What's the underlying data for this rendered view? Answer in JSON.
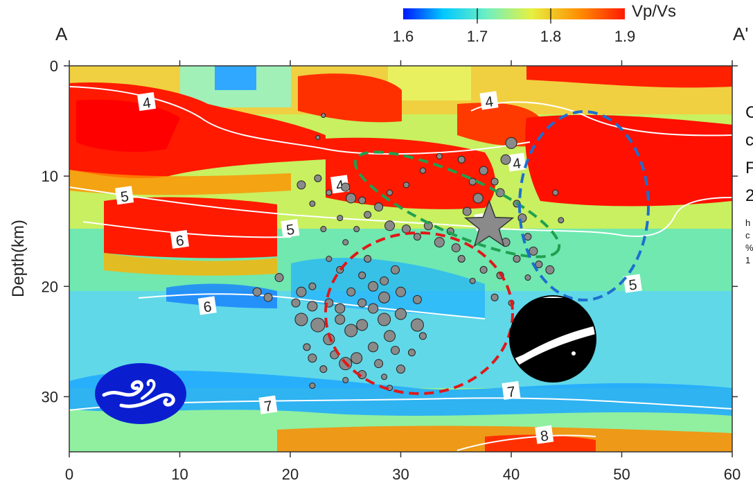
{
  "header": {
    "left_label": "A",
    "right_label": "A'"
  },
  "colorbar": {
    "label": "Vp/Vs",
    "min": 1.6,
    "max": 1.9,
    "ticks": [
      "1.6",
      "1.7",
      "1.8",
      "1.9"
    ],
    "colors": [
      "#0018ff",
      "#00c8ff",
      "#70f0c0",
      "#e6f040",
      "#ff8c00",
      "#ff1a00"
    ]
  },
  "side_text": {
    "lines": [
      "C",
      "c",
      "F",
      "2"
    ],
    "small_lines": [
      "h",
      "c",
      "%",
      "1"
    ]
  },
  "chart_data": {
    "type": "heatmap",
    "title": "",
    "xlabel": "",
    "ylabel": "Depth(km)",
    "xlim": [
      0,
      60
    ],
    "ylim": [
      35,
      0
    ],
    "x_ticks": [
      "0",
      "10",
      "20",
      "30",
      "40",
      "50",
      "60"
    ],
    "y_ticks": [
      "0",
      "10",
      "20",
      "30"
    ],
    "grid": false,
    "contour_labels": [
      {
        "text": "4",
        "x": 7,
        "y": 3.3
      },
      {
        "text": "4",
        "x": 24.5,
        "y": 10.8
      },
      {
        "text": "4",
        "x": 38,
        "y": 3.2
      },
      {
        "text": "4",
        "x": 40.5,
        "y": 8.8
      },
      {
        "text": "5",
        "x": 5,
        "y": 11.8
      },
      {
        "text": "5",
        "x": 20,
        "y": 14.8
      },
      {
        "text": "5",
        "x": 37.5,
        "y": 14.2
      },
      {
        "text": "5",
        "x": 51,
        "y": 19.8
      },
      {
        "text": "6",
        "x": 10,
        "y": 15.8
      },
      {
        "text": "6",
        "x": 12.5,
        "y": 21.8
      },
      {
        "text": "7",
        "x": 18,
        "y": 30.8
      },
      {
        "text": "7",
        "x": 40,
        "y": 29.5
      },
      {
        "text": "8",
        "x": 43,
        "y": 33.5
      }
    ],
    "mainshock": {
      "x": 38,
      "y": 14.5
    },
    "events": [
      [
        22.5,
        10.2,
        5
      ],
      [
        23.5,
        11.5,
        4
      ],
      [
        21,
        10.8,
        6
      ],
      [
        22,
        12.5,
        4
      ],
      [
        25,
        11,
        6
      ],
      [
        25.5,
        12,
        7
      ],
      [
        26.5,
        12.2,
        5
      ],
      [
        27,
        13.5,
        5
      ],
      [
        24.5,
        13.8,
        4
      ],
      [
        26,
        14.8,
        4
      ],
      [
        28,
        12.8,
        6
      ],
      [
        29,
        14.5,
        7
      ],
      [
        30.5,
        14.8,
        6
      ],
      [
        31.5,
        15.5,
        5
      ],
      [
        32.5,
        14.5,
        6
      ],
      [
        33.5,
        16,
        7
      ],
      [
        34.5,
        15,
        5
      ],
      [
        35,
        16.5,
        6
      ],
      [
        35.5,
        17.5,
        5
      ],
      [
        36,
        13.2,
        6
      ],
      [
        37,
        12,
        7
      ],
      [
        36.5,
        10.5,
        5
      ],
      [
        37.5,
        9.5,
        6
      ],
      [
        38.5,
        10.5,
        5
      ],
      [
        39.5,
        8.5,
        7
      ],
      [
        40,
        7,
        8
      ],
      [
        39,
        11.5,
        6
      ],
      [
        40.5,
        12.5,
        5
      ],
      [
        41,
        13.8,
        6
      ],
      [
        41.5,
        15.5,
        5
      ],
      [
        42,
        16.8,
        6
      ],
      [
        42.5,
        18,
        5
      ],
      [
        40.5,
        17.5,
        5
      ],
      [
        39.5,
        16,
        6
      ],
      [
        39,
        19,
        5
      ],
      [
        37.5,
        18.5,
        5
      ],
      [
        36.5,
        19.5,
        4
      ],
      [
        38.5,
        21,
        5
      ],
      [
        40,
        21.5,
        4
      ],
      [
        41.5,
        19.2,
        4
      ],
      [
        43.5,
        18.5,
        6
      ],
      [
        44.5,
        14,
        4
      ],
      [
        44,
        11.5,
        4
      ],
      [
        30.5,
        10.8,
        4
      ],
      [
        32,
        9.5,
        4
      ],
      [
        33.5,
        8.2,
        4
      ],
      [
        35.5,
        8.5,
        5
      ],
      [
        29,
        11.5,
        4
      ],
      [
        23,
        14.8,
        4
      ],
      [
        22.5,
        6.5,
        3
      ],
      [
        23,
        4.5,
        3
      ],
      [
        17,
        20.5,
        6
      ],
      [
        18,
        21,
        6
      ],
      [
        19,
        19.2,
        6
      ],
      [
        21,
        20.5,
        7
      ],
      [
        22,
        21.8,
        7
      ],
      [
        21,
        23,
        9
      ],
      [
        22.5,
        23.5,
        10
      ],
      [
        23.5,
        24.8,
        8
      ],
      [
        24.5,
        23,
        7
      ],
      [
        25.5,
        24,
        9
      ],
      [
        26.5,
        23.5,
        8
      ],
      [
        27.5,
        22,
        7
      ],
      [
        28.5,
        23,
        9
      ],
      [
        29,
        24.5,
        8
      ],
      [
        30,
        22.5,
        8
      ],
      [
        31.5,
        23.5,
        9
      ],
      [
        29.5,
        25.8,
        6
      ],
      [
        27.5,
        25.5,
        7
      ],
      [
        26,
        26.5,
        8
      ],
      [
        25,
        27,
        9
      ],
      [
        26.5,
        28,
        6
      ],
      [
        24,
        26.2,
        6
      ],
      [
        22,
        26.5,
        6
      ],
      [
        21.5,
        25.5,
        5
      ],
      [
        23,
        27.5,
        5
      ],
      [
        28,
        27,
        6
      ],
      [
        30,
        27.5,
        6
      ],
      [
        31,
        26,
        5
      ],
      [
        27.5,
        20,
        7
      ],
      [
        28.5,
        19.5,
        6
      ],
      [
        29.5,
        18.5,
        6
      ],
      [
        30,
        20.5,
        7
      ],
      [
        28.5,
        21,
        8
      ],
      [
        26.5,
        21.5,
        6
      ],
      [
        25.5,
        20.5,
        6
      ],
      [
        26.5,
        19,
        5
      ],
      [
        27,
        17.5,
        5
      ],
      [
        24.5,
        18.5,
        5
      ],
      [
        23.5,
        17.5,
        4
      ],
      [
        25,
        16,
        4
      ],
      [
        22,
        20,
        5
      ],
      [
        20.5,
        21.5,
        6
      ],
      [
        24.5,
        22,
        7
      ],
      [
        23.5,
        21.5,
        6
      ],
      [
        22,
        29,
        4
      ],
      [
        29,
        29.2,
        4
      ],
      [
        28.5,
        28.2,
        4
      ],
      [
        31.5,
        21.2,
        6
      ],
      [
        32,
        24.5,
        5
      ],
      [
        25,
        28.5,
        4
      ]
    ]
  }
}
